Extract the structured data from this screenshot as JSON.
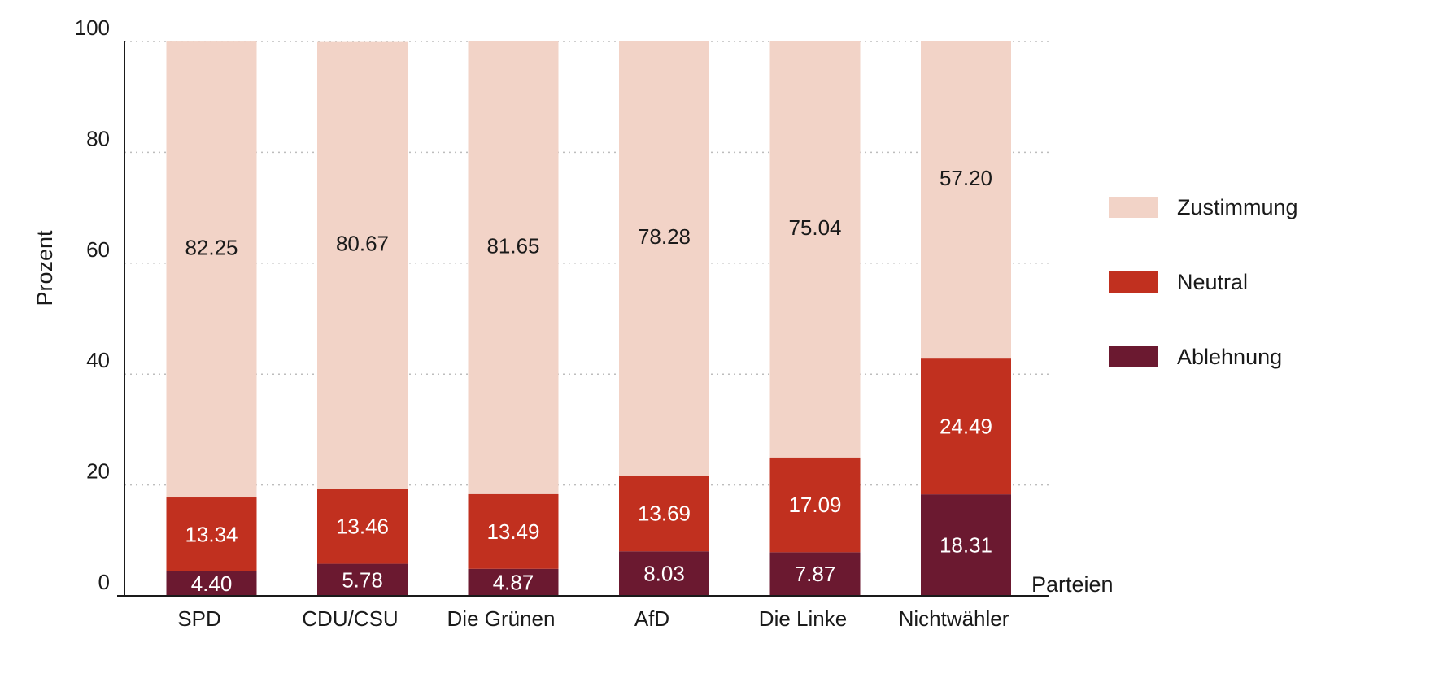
{
  "colors": {
    "Zustimmung": "#f2d3c7",
    "Neutral": "#c1301f",
    "Ablehnung": "#6b1930",
    "label_dark": "#1a1a1a",
    "label_light": "#ffffff",
    "grid": "#bdbdbd",
    "axis": "#1a1a1a"
  },
  "chart_data": {
    "type": "bar",
    "stacked": true,
    "title": "",
    "xlabel": "Parteien",
    "ylabel": "Prozent",
    "ylim": [
      0,
      100
    ],
    "yticks": [
      0,
      20,
      40,
      60,
      80,
      100
    ],
    "grid": "horizontal-dotted",
    "legend_position": "right",
    "categories": [
      "SPD",
      "CDU/CSU",
      "Die Grünen",
      "AfD",
      "Die Linke",
      "Nichtwähler"
    ],
    "series": [
      {
        "name": "Ablehnung",
        "values": [
          4.4,
          5.78,
          4.87,
          8.03,
          7.87,
          18.31
        ],
        "labels": [
          "4.40",
          "5.78",
          "4.87",
          "8.03",
          "7.87",
          "18.31"
        ]
      },
      {
        "name": "Neutral",
        "values": [
          13.34,
          13.46,
          13.49,
          13.69,
          17.09,
          24.49
        ],
        "labels": [
          "13.34",
          "13.46",
          "13.49",
          "13.69",
          "17.09",
          "24.49"
        ]
      },
      {
        "name": "Zustimmung",
        "values": [
          82.25,
          80.67,
          81.65,
          78.28,
          75.04,
          57.2
        ],
        "labels": [
          "82.25",
          "80.67",
          "81.65",
          "78.28",
          "75.04",
          "57.20"
        ]
      }
    ],
    "legend_order": [
      "Zustimmung",
      "Neutral",
      "Ablehnung"
    ]
  }
}
